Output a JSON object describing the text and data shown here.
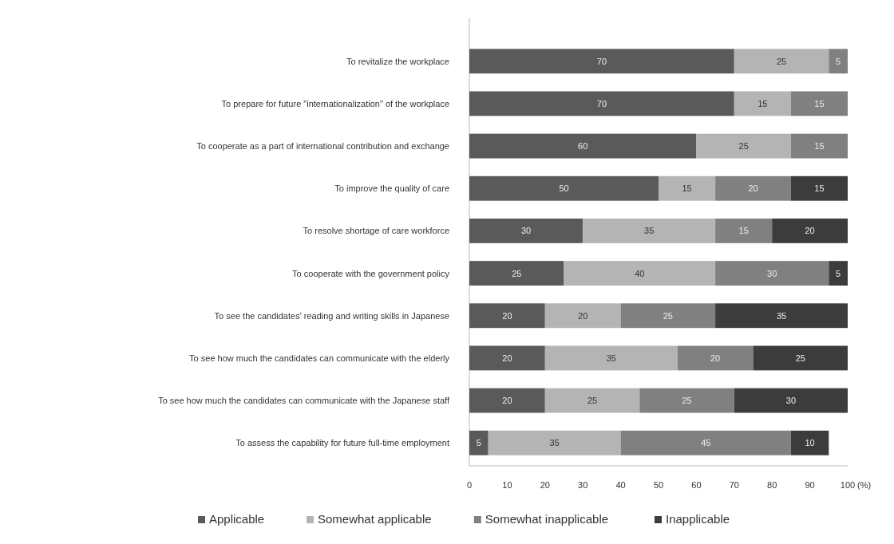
{
  "chart_data": {
    "type": "bar",
    "orientation": "horizontal",
    "stacked": true,
    "data_labels": true,
    "legend": "bottom",
    "grid": false,
    "xlabel": "(%)",
    "categories": [
      "To revitalize the workplace",
      "To prepare for future \"internationalization\" of the workplace",
      "To cooperate as a part of international contribution and exchange",
      "To improve the quality of care",
      "To resolve shortage of care workforce ",
      "To cooperate with the government policy",
      "To see the candidates' reading and writing skills in Japanese",
      "To see how much the candidates can communicate with the elderly",
      "To see how much the candidates can communicate with the Japanese staff",
      "To assess the capability for future full-time employment"
    ],
    "xlim": [
      0,
      100
    ],
    "xticks": [
      0,
      10,
      20,
      30,
      40,
      50,
      60,
      70,
      80,
      90,
      100
    ],
    "series": [
      {
        "name": "Applicable",
        "color": "#5a5a5a",
        "values": [
          70,
          70,
          60,
          50,
          30,
          25,
          20,
          20,
          20,
          5
        ]
      },
      {
        "name": "Somewhat applicable",
        "color": "#b4b4b4",
        "values": [
          25,
          15,
          25,
          15,
          35,
          40,
          20,
          35,
          25,
          35
        ]
      },
      {
        "name": "Somewhat inapplicable",
        "color": "#808080",
        "values": [
          5,
          15,
          15,
          20,
          15,
          30,
          25,
          20,
          25,
          45
        ]
      },
      {
        "name": "Inapplicable",
        "color": "#3c3c3c",
        "values": [
          null,
          null,
          null,
          15,
          20,
          5,
          35,
          25,
          30,
          10
        ]
      }
    ]
  }
}
